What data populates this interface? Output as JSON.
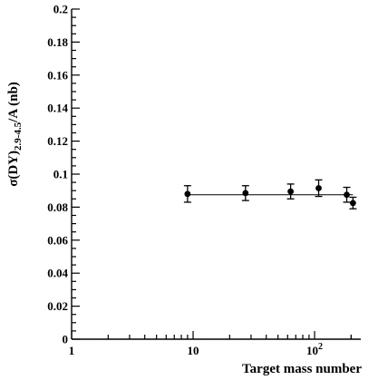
{
  "chart_data": {
    "type": "scatter",
    "x_scale": "log",
    "xlim": [
      1,
      240
    ],
    "ylim": [
      0,
      0.2
    ],
    "xlabel": "Target mass number",
    "ylabel": {
      "main": "σ(DY)",
      "subscript": "2.9-4.5",
      "suffix": "/A (nb)"
    },
    "x_tick_labels": [
      {
        "value": 1,
        "base": "1",
        "sup": ""
      },
      {
        "value": 10,
        "base": "10",
        "sup": ""
      },
      {
        "value": 100,
        "base": "10",
        "sup": "2"
      }
    ],
    "y_ticks": [
      0,
      0.02,
      0.04,
      0.06,
      0.08,
      0.1,
      0.12,
      0.14,
      0.16,
      0.18,
      0.2
    ],
    "y_tick_labels": [
      "0",
      "0.02",
      "0.04",
      "0.06",
      "0.08",
      "0.1",
      "0.12",
      "0.14",
      "0.16",
      "0.18",
      "0.2"
    ],
    "points": [
      {
        "x": 9,
        "y": 0.088,
        "err": 0.005
      },
      {
        "x": 27,
        "y": 0.0885,
        "err": 0.0045
      },
      {
        "x": 63.5,
        "y": 0.0895,
        "err": 0.0045
      },
      {
        "x": 108,
        "y": 0.0915,
        "err": 0.005
      },
      {
        "x": 184,
        "y": 0.0875,
        "err": 0.0045
      },
      {
        "x": 207,
        "y": 0.0825,
        "err": 0.0035
      }
    ],
    "fit": {
      "x_start": 9,
      "x_end": 207,
      "y": 0.0875
    },
    "grid": false,
    "legend": "none"
  }
}
